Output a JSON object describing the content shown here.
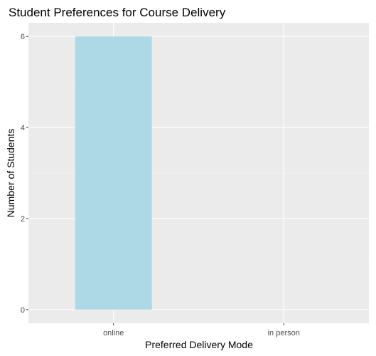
{
  "chart_data": {
    "type": "bar",
    "title": "Student Preferences for Course Delivery",
    "xlabel": "Preferred Delivery Mode",
    "ylabel": "Number of Students",
    "categories": [
      "online",
      "in person"
    ],
    "values": [
      6,
      0
    ],
    "ylim": [
      -0.3,
      6.3
    ],
    "yticks": [
      0,
      2,
      4,
      6
    ],
    "grid": true,
    "legend": "none",
    "colors": {
      "bar": "#add8e6",
      "panel_background": "#ebebeb",
      "grid_major": "#ffffff",
      "grid_minor": "#f5f5f5",
      "tick_text": "#4d4d4d",
      "tick_mark": "#333333"
    }
  }
}
